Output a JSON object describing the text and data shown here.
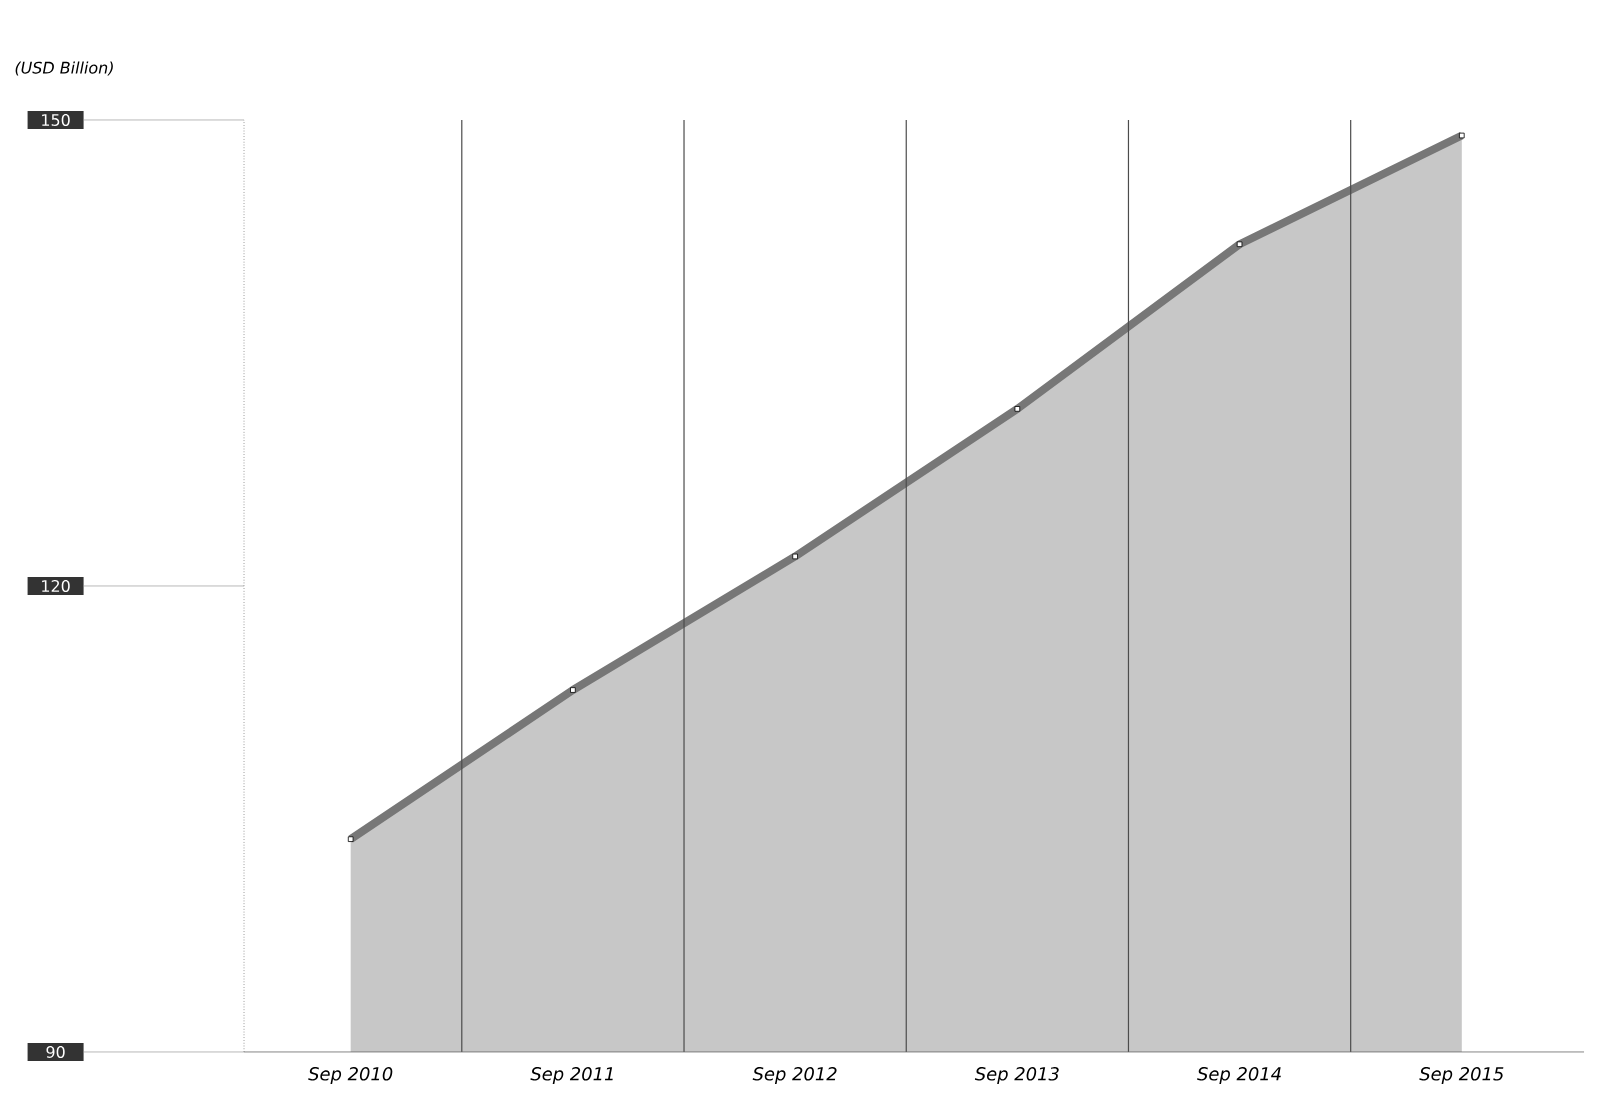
{
  "chart_data": {
    "type": "area",
    "ylabel": "(USD Billion)",
    "categories": [
      "Sep 2010",
      "Sep 2011",
      "Sep 2012",
      "Sep 2013",
      "Sep 2014",
      "Sep 2015"
    ],
    "series": [
      {
        "color": "#777777",
        "values": [
          103.7,
          113.3,
          121.9,
          131.4,
          142.0,
          149.0
        ]
      }
    ],
    "ylim": [
      90,
      150
    ],
    "yticks": [
      90,
      120,
      150
    ],
    "grid": "x",
    "marker": "square"
  }
}
